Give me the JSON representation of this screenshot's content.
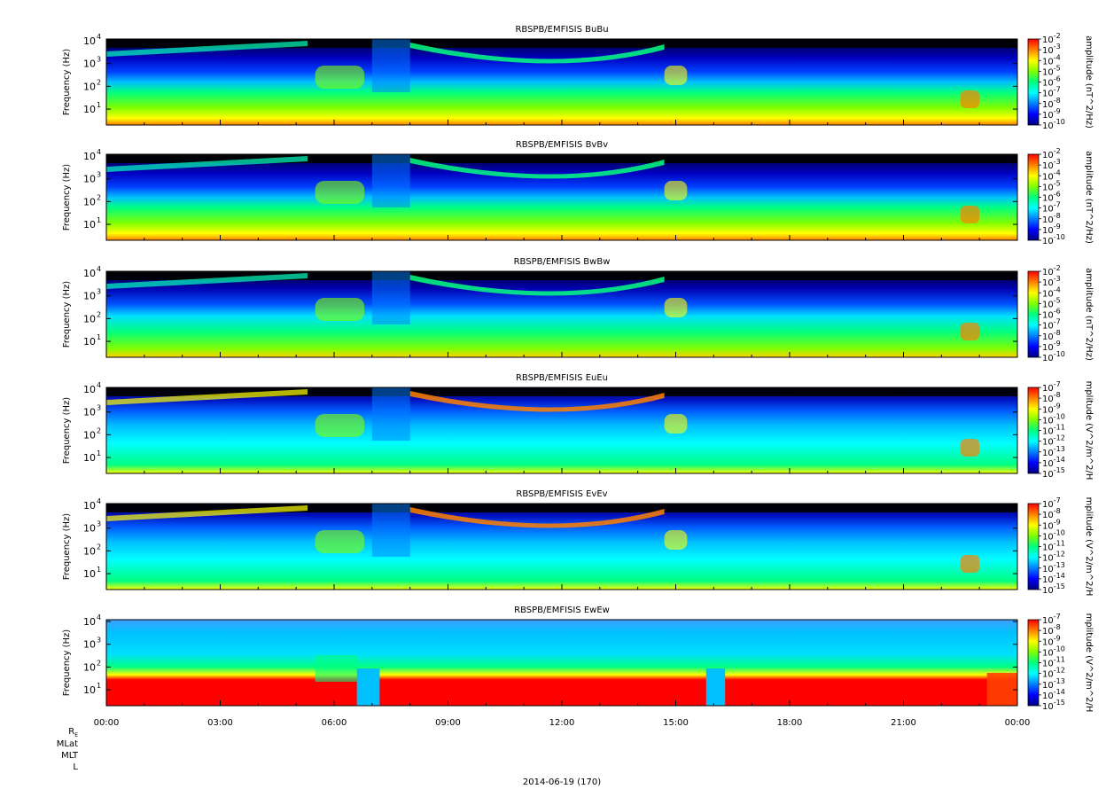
{
  "chart_data": {
    "type": "heatmap",
    "date_label": "2014-06-19 (170)",
    "x_ticks": [
      "00:00",
      "03:00",
      "06:00",
      "09:00",
      "12:00",
      "15:00",
      "18:00",
      "21:00",
      "00:00"
    ],
    "x_range_hours": [
      0,
      24
    ],
    "orbit_labels": [
      "R_E",
      "MLat",
      "MLT",
      "L"
    ],
    "colormap": [
      "#000080",
      "#0000ff",
      "#0080ff",
      "#00ffff",
      "#00ff80",
      "#80ff00",
      "#ffff00",
      "#ff8000",
      "#ff0000"
    ],
    "panels": [
      {
        "title": "RBSPB/EMFISIS  BuBu",
        "ylabel": "Frequency (Hz)",
        "y_ticks": [
          "10",
          "10",
          "10",
          "10"
        ],
        "y_tick_exp": [
          "1",
          "2",
          "3",
          "4"
        ],
        "ylim_hz": [
          2,
          12000
        ],
        "yscale": "log",
        "colorbar_label": "amplitude (nT^2/Hz)",
        "colorbar_ticks": [
          "10",
          "10",
          "10",
          "10",
          "10",
          "10",
          "10",
          "10",
          "10"
        ],
        "colorbar_exp": [
          "-2",
          "-3",
          "-4",
          "-5",
          "-6",
          "-7",
          "-8",
          "-9",
          "-10"
        ],
        "component": "B"
      },
      {
        "title": "RBSPB/EMFISIS  BvBv",
        "ylabel": "Frequency (Hz)",
        "y_ticks": [
          "10",
          "10",
          "10",
          "10"
        ],
        "y_tick_exp": [
          "1",
          "2",
          "3",
          "4"
        ],
        "ylim_hz": [
          2,
          12000
        ],
        "yscale": "log",
        "colorbar_label": "amplitude (nT^2/Hz)",
        "colorbar_ticks": [
          "10",
          "10",
          "10",
          "10",
          "10",
          "10",
          "10",
          "10",
          "10"
        ],
        "colorbar_exp": [
          "-2",
          "-3",
          "-4",
          "-5",
          "-6",
          "-7",
          "-8",
          "-9",
          "-10"
        ],
        "component": "B"
      },
      {
        "title": "RBSPB/EMFISIS  BwBw",
        "ylabel": "Frequency (Hz)",
        "y_ticks": [
          "10",
          "10",
          "10",
          "10"
        ],
        "y_tick_exp": [
          "1",
          "2",
          "3",
          "4"
        ],
        "ylim_hz": [
          2,
          12000
        ],
        "yscale": "log",
        "colorbar_label": "amplitude (nT^2/Hz)",
        "colorbar_ticks": [
          "10",
          "10",
          "10",
          "10",
          "10",
          "10",
          "10",
          "10",
          "10"
        ],
        "colorbar_exp": [
          "-2",
          "-3",
          "-4",
          "-5",
          "-6",
          "-7",
          "-8",
          "-9",
          "-10"
        ],
        "component": "Bw"
      },
      {
        "title": "RBSPB/EMFISIS  EuEu",
        "ylabel": "Frequency (Hz)",
        "y_ticks": [
          "10",
          "10",
          "10",
          "10"
        ],
        "y_tick_exp": [
          "1",
          "2",
          "3",
          "4"
        ],
        "ylim_hz": [
          2,
          12000
        ],
        "yscale": "log",
        "colorbar_label": "mplitude (V^2/m^2/H",
        "colorbar_ticks": [
          "10",
          "10",
          "10",
          "10",
          "10",
          "10",
          "10",
          "10",
          "10"
        ],
        "colorbar_exp": [
          "-7",
          "-8",
          "-9",
          "-10",
          "-11",
          "-12",
          "-13",
          "-14",
          "-15"
        ],
        "component": "E"
      },
      {
        "title": "RBSPB/EMFISIS  EvEv",
        "ylabel": "Frequency (Hz)",
        "y_ticks": [
          "10",
          "10",
          "10",
          "10"
        ],
        "y_tick_exp": [
          "1",
          "2",
          "3",
          "4"
        ],
        "ylim_hz": [
          2,
          12000
        ],
        "yscale": "log",
        "colorbar_label": "mplitude (V^2/m^2/H",
        "colorbar_ticks": [
          "10",
          "10",
          "10",
          "10",
          "10",
          "10",
          "10",
          "10",
          "10"
        ],
        "colorbar_exp": [
          "-7",
          "-8",
          "-9",
          "-10",
          "-11",
          "-12",
          "-13",
          "-14",
          "-15"
        ],
        "component": "E"
      },
      {
        "title": "RBSPB/EMFISIS  EwEw",
        "ylabel": "Frequency (Hz)",
        "y_ticks": [
          "10",
          "10",
          "10",
          "10"
        ],
        "y_tick_exp": [
          "1",
          "2",
          "3",
          "4"
        ],
        "ylim_hz": [
          2,
          12000
        ],
        "yscale": "log",
        "colorbar_label": "mplitude (V^2/m^2/H",
        "colorbar_ticks": [
          "10",
          "10",
          "10",
          "10",
          "10",
          "10",
          "10",
          "10",
          "10"
        ],
        "colorbar_exp": [
          "-7",
          "-8",
          "-9",
          "-10",
          "-11",
          "-12",
          "-13",
          "-14",
          "-15"
        ],
        "component": "Ew"
      }
    ]
  }
}
